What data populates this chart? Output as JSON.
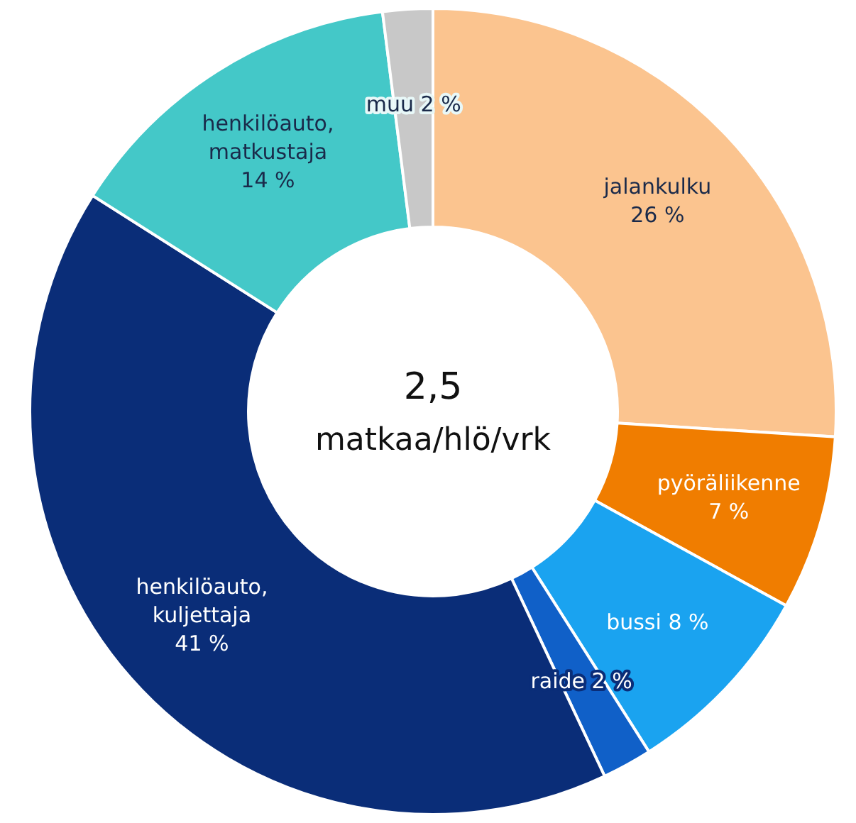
{
  "chart_data": {
    "type": "donut",
    "categories": [
      "jalankulku",
      "pyöräliikenne",
      "bussi",
      "raide",
      "henkilöauto, kuljettaja",
      "henkilöauto, matkustaja",
      "muu"
    ],
    "values": [
      26,
      7,
      8,
      2,
      41,
      14,
      2
    ],
    "value_labels": [
      "26 %",
      "7 %",
      "8 %",
      "2 %",
      "41 %",
      "14 %",
      "2 %"
    ],
    "colors": [
      "#fbc48f",
      "#f07d00",
      "#1aa3f0",
      "#1060c8",
      "#0a2d78",
      "#44c8c8",
      "#c8c8c8"
    ],
    "annotations": [
      "2,5",
      "matkaa/hlö/vrk"
    ]
  }
}
